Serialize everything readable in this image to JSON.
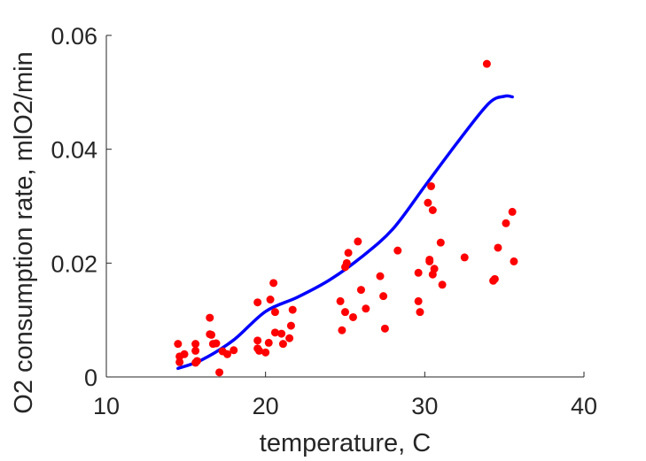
{
  "chart_data": {
    "type": "scatter",
    "xlabel": "temperature, C",
    "ylabel": "O2 consumption rate, mlO2/min",
    "xlim": [
      10,
      40
    ],
    "ylim": [
      0,
      0.06
    ],
    "xticks": [
      10,
      20,
      30,
      40
    ],
    "xtick_labels": [
      "10",
      "20",
      "30",
      "40"
    ],
    "yticks": [
      0,
      0.02,
      0.04,
      0.06
    ],
    "ytick_labels": [
      "0",
      "0.02",
      "0.04",
      "0.06"
    ],
    "grid": false,
    "colors": {
      "points": "#ff0000",
      "curve": "#0000ff",
      "axis": "#262626"
    },
    "series": [
      {
        "type": "scatter",
        "points": [
          [
            14.5,
            0.0058
          ],
          [
            14.6,
            0.0036
          ],
          [
            14.6,
            0.0026
          ],
          [
            14.9,
            0.004
          ],
          [
            15.6,
            0.0058
          ],
          [
            15.6,
            0.0046
          ],
          [
            15.7,
            0.0028
          ],
          [
            15.6,
            0.0025
          ],
          [
            16.5,
            0.0104
          ],
          [
            16.5,
            0.0075
          ],
          [
            16.6,
            0.0074
          ],
          [
            16.7,
            0.0058
          ],
          [
            16.9,
            0.0059
          ],
          [
            17.1,
            0.0008
          ],
          [
            17.3,
            0.0045
          ],
          [
            17.6,
            0.004
          ],
          [
            18.0,
            0.0047
          ],
          [
            19.5,
            0.0131
          ],
          [
            19.5,
            0.0064
          ],
          [
            19.5,
            0.005
          ],
          [
            19.6,
            0.0046
          ],
          [
            20.0,
            0.0043
          ],
          [
            20.2,
            0.006
          ],
          [
            20.3,
            0.0136
          ],
          [
            20.5,
            0.0165
          ],
          [
            20.6,
            0.0114
          ],
          [
            20.6,
            0.0078
          ],
          [
            21.0,
            0.0076
          ],
          [
            21.1,
            0.0058
          ],
          [
            21.5,
            0.0068
          ],
          [
            21.6,
            0.009
          ],
          [
            21.7,
            0.0118
          ],
          [
            24.7,
            0.0133
          ],
          [
            24.8,
            0.0082
          ],
          [
            25.0,
            0.0114
          ],
          [
            25.0,
            0.0193
          ],
          [
            25.1,
            0.02
          ],
          [
            25.2,
            0.0218
          ],
          [
            25.5,
            0.0105
          ],
          [
            25.8,
            0.0238
          ],
          [
            26.0,
            0.0153
          ],
          [
            26.3,
            0.012
          ],
          [
            27.2,
            0.0177
          ],
          [
            27.4,
            0.0142
          ],
          [
            27.5,
            0.0085
          ],
          [
            28.3,
            0.0222
          ],
          [
            29.6,
            0.0183
          ],
          [
            29.6,
            0.0133
          ],
          [
            29.7,
            0.0114
          ],
          [
            30.2,
            0.0306
          ],
          [
            30.3,
            0.0206
          ],
          [
            30.3,
            0.0203
          ],
          [
            30.4,
            0.0335
          ],
          [
            30.5,
            0.0293
          ],
          [
            30.5,
            0.018
          ],
          [
            30.6,
            0.019
          ],
          [
            31.0,
            0.0236
          ],
          [
            31.1,
            0.0162
          ],
          [
            32.5,
            0.021
          ],
          [
            33.9,
            0.055
          ],
          [
            34.3,
            0.0169
          ],
          [
            34.4,
            0.0172
          ],
          [
            34.6,
            0.0227
          ],
          [
            35.1,
            0.027
          ],
          [
            35.5,
            0.029
          ],
          [
            35.6,
            0.0203
          ]
        ]
      },
      {
        "type": "line",
        "points": [
          [
            14.5,
            0.0015
          ],
          [
            16.0,
            0.003
          ],
          [
            18.0,
            0.0065
          ],
          [
            20.0,
            0.0115
          ],
          [
            22.0,
            0.014
          ],
          [
            24.0,
            0.017
          ],
          [
            26.0,
            0.021
          ],
          [
            28.0,
            0.026
          ],
          [
            30.0,
            0.0335
          ],
          [
            32.0,
            0.041
          ],
          [
            34.0,
            0.048
          ],
          [
            35.0,
            0.0493
          ],
          [
            35.5,
            0.0492
          ]
        ]
      }
    ]
  }
}
